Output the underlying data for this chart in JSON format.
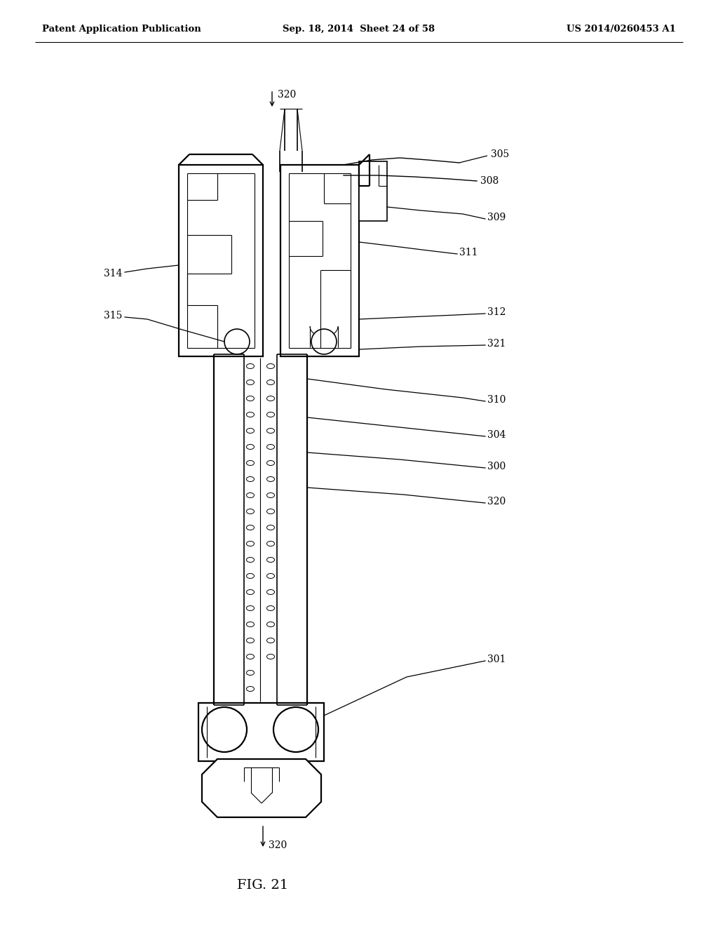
{
  "header_left": "Patent Application Publication",
  "header_center": "Sep. 18, 2014  Sheet 24 of 58",
  "header_right": "US 2014/0260453 A1",
  "fig_label": "FIG. 21",
  "background_color": "#ffffff",
  "labels": {
    "320_top": "320",
    "305": "305",
    "308": "308",
    "309": "309",
    "311": "311",
    "314": "314",
    "315": "315",
    "312": "312",
    "321": "321",
    "310": "310",
    "304": "304",
    "300": "300",
    "320_mid": "320",
    "301": "301",
    "320_bot": "320"
  }
}
